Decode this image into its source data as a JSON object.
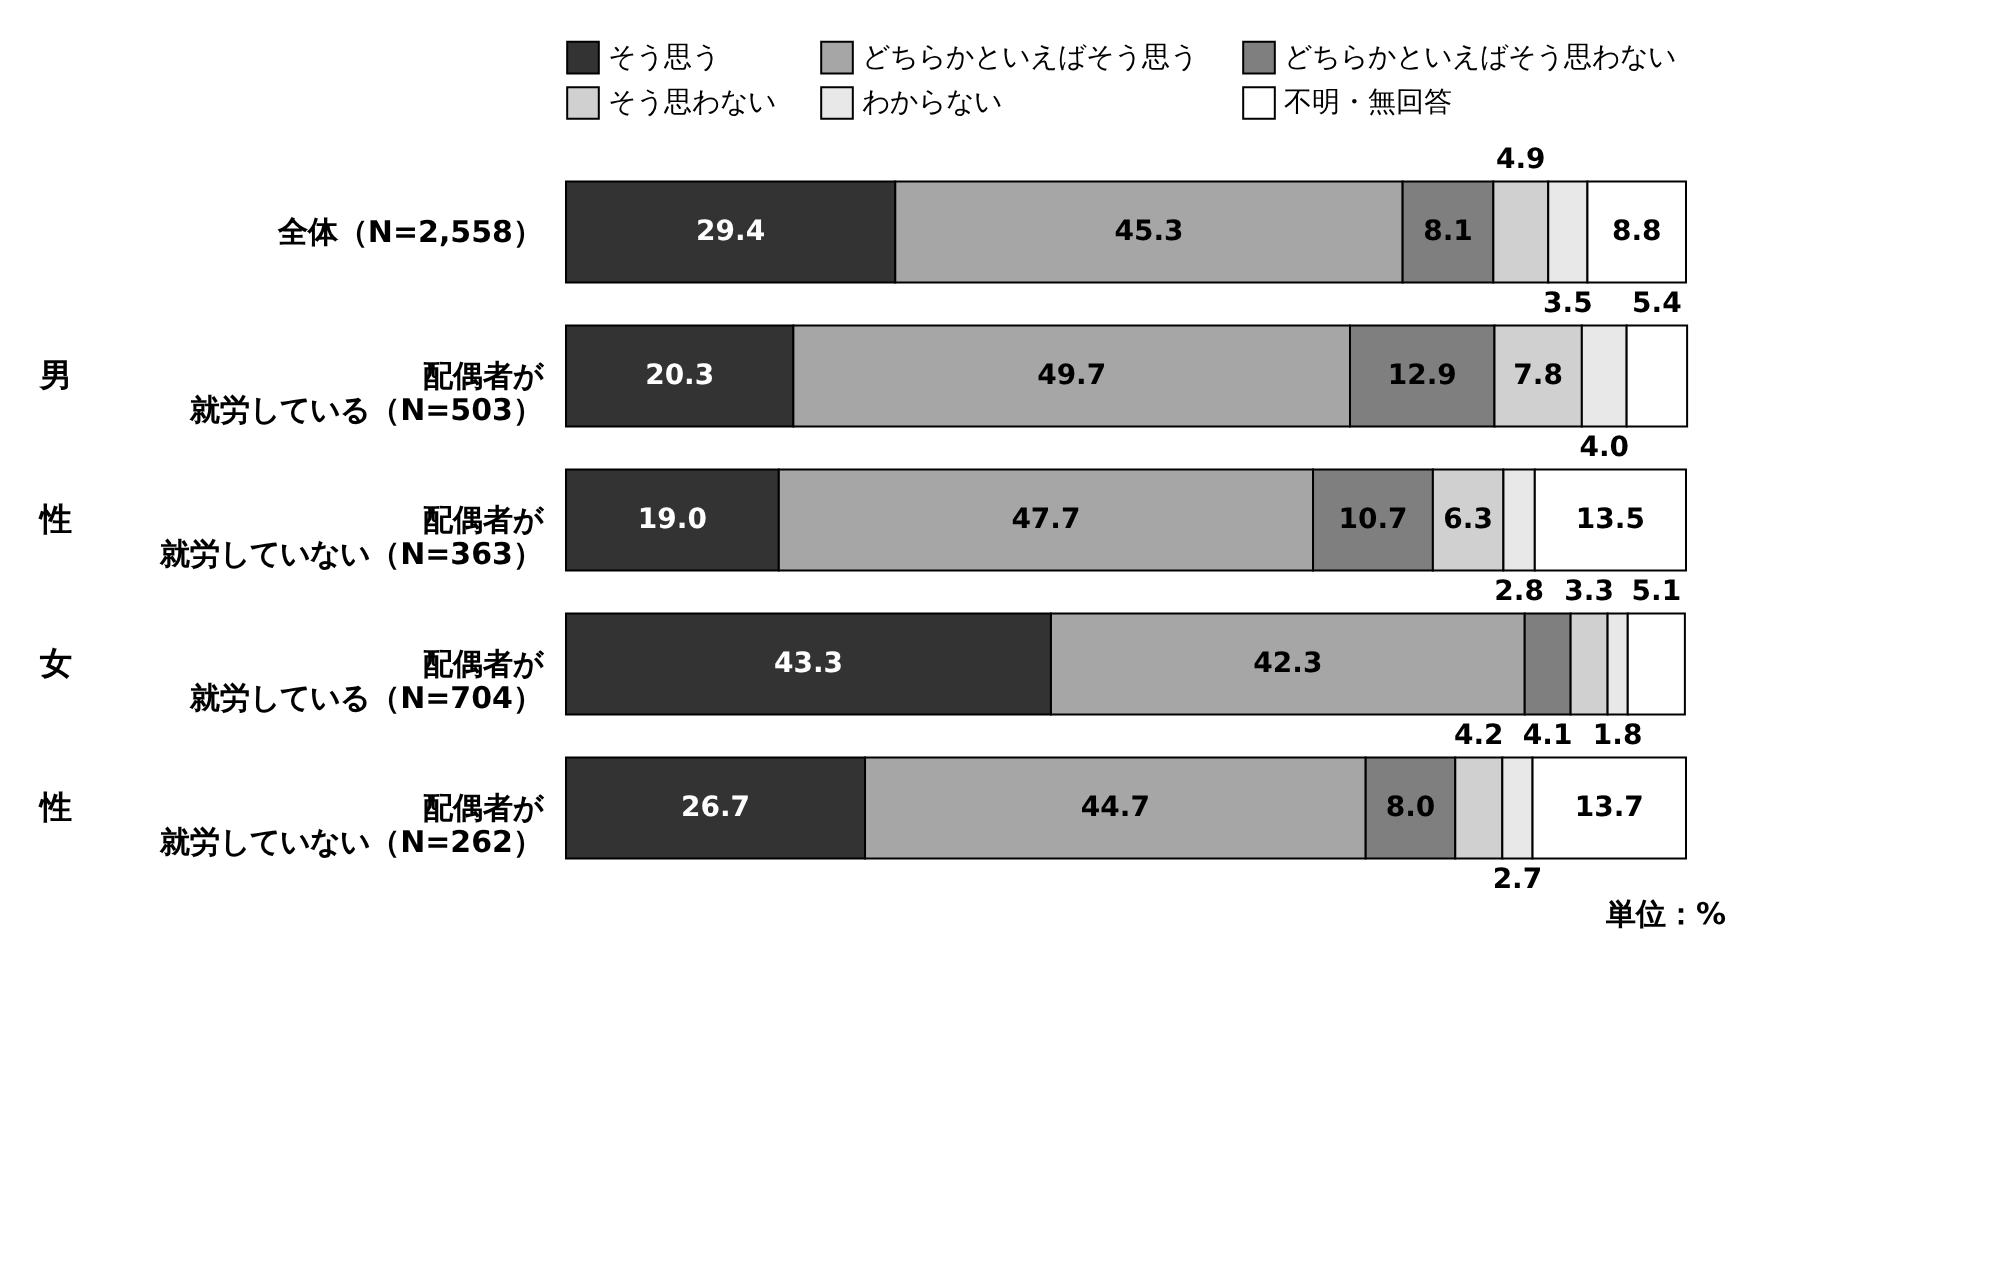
{
  "chart_data": {
    "type": "bar",
    "orientation": "horizontal",
    "stacked": true,
    "legend": "top",
    "categories": [
      "全体（N=2,558）",
      "配偶者が就労している（N=503）",
      "配偶者が就労していない（N=363）",
      "配偶者が就労している（N=704）",
      "配偶者が就労していない（N=262）"
    ],
    "series": [
      {
        "name": "そう思う",
        "color": "#333333",
        "values": [
          29.4,
          20.3,
          19.0,
          43.3,
          26.7
        ],
        "value_labels": [
          "29.4",
          "20.3",
          "19.0",
          "43.3",
          "26.7"
        ]
      },
      {
        "name": "どちらかといえばそう思う",
        "color": "#a6a6a6",
        "values": [
          45.3,
          49.7,
          47.7,
          42.3,
          44.7
        ],
        "value_labels": [
          "45.3",
          "49.7",
          "47.7",
          "42.3",
          "44.7"
        ]
      },
      {
        "name": "どちらかといえばそう思わない",
        "color": "#7f7f7f",
        "values": [
          8.1,
          12.9,
          10.7,
          4.1,
          8.0
        ],
        "value_labels": [
          "8.1",
          "12.9",
          "10.7",
          "4.1",
          "8.0"
        ]
      },
      {
        "name": "そう思わない",
        "color": "#d0d0d0",
        "values": [
          4.9,
          7.8,
          6.3,
          3.3,
          4.2
        ],
        "value_labels": [
          "4.9",
          "7.8",
          "6.3",
          "3.3",
          "4.2"
        ]
      },
      {
        "name": "わからない",
        "color": "#e8e8e8",
        "values": [
          3.5,
          4.0,
          2.8,
          1.8,
          2.7
        ],
        "value_labels": [
          "3.5",
          "4.0",
          "2.8",
          "1.8",
          "2.7"
        ]
      },
      {
        "name": "不明・無回答",
        "color": "#ffffff",
        "values": [
          8.8,
          5.4,
          13.5,
          5.1,
          13.7
        ],
        "value_labels": [
          "8.8",
          "5.4",
          "13.5",
          "5.1",
          "13.7"
        ]
      }
    ],
    "annotations": [
      "男",
      "性",
      "女",
      "性",
      "単位：%"
    ]
  }
}
